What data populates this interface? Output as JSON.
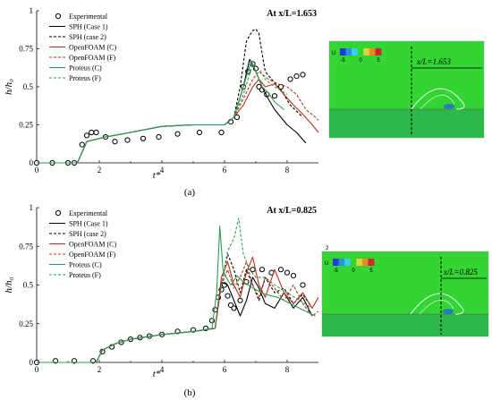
{
  "chart_data": [
    {
      "type": "line",
      "panel_caption": "(a)",
      "annotation": "At x/L=1.653",
      "xlabel": "t*",
      "ylabel": "h/h₀",
      "xlim": [
        0,
        9
      ],
      "ylim": [
        0,
        1
      ],
      "xticks": [
        0,
        2,
        4,
        6,
        8
      ],
      "yticks": [
        0,
        0.25,
        0.5,
        0.75,
        1
      ],
      "xtick_labels": [
        "0",
        "2",
        "4",
        "6",
        "8"
      ],
      "ytick_labels": [
        "0",
        "0.25",
        "0.5",
        "0.75",
        "1"
      ],
      "legend_position": "top-left",
      "series": [
        {
          "name": "Experimental",
          "style": "circle-marker",
          "color": "#000000",
          "x": [
            0,
            0.5,
            1.0,
            1.2,
            1.45,
            1.6,
            1.75,
            1.9,
            2.2,
            2.5,
            2.9,
            3.4,
            3.9,
            4.5,
            5.2,
            5.9,
            6.2,
            6.4,
            6.6,
            6.75,
            6.9,
            7.0,
            7.1,
            7.2,
            7.35,
            7.6,
            7.8,
            8.1,
            8.3,
            8.5
          ],
          "y": [
            0,
            0,
            0,
            0,
            0.12,
            0.18,
            0.2,
            0.2,
            0.17,
            0.14,
            0.15,
            0.16,
            0.17,
            0.19,
            0.2,
            0.2,
            0.27,
            0.3,
            0.5,
            0.6,
            0.65,
            0.62,
            0.5,
            0.48,
            0.45,
            0.44,
            0.5,
            0.55,
            0.57,
            0.58
          ]
        },
        {
          "name": "SPH (Case 1)",
          "style": "solid",
          "color": "#000000",
          "x": [
            0,
            1.3,
            1.6,
            2.2,
            3.0,
            4.0,
            5.0,
            6.0,
            6.3,
            6.6,
            6.8,
            7.0,
            7.2,
            7.4,
            7.6,
            7.8,
            8.0,
            8.3,
            8.6
          ],
          "y": [
            0,
            0,
            0.14,
            0.17,
            0.2,
            0.24,
            0.25,
            0.25,
            0.3,
            0.5,
            0.68,
            0.6,
            0.5,
            0.42,
            0.35,
            0.3,
            0.25,
            0.2,
            0.13
          ]
        },
        {
          "name": "SPH (case 2)",
          "style": "dashed",
          "color": "#000000",
          "x": [
            0,
            1.3,
            1.6,
            2.2,
            3.0,
            4.0,
            5.0,
            6.0,
            6.3,
            6.5,
            6.7,
            6.9,
            7.0,
            7.1,
            7.2,
            7.3,
            7.5,
            7.8,
            8.1,
            8.5
          ],
          "y": [
            0,
            0,
            0.14,
            0.17,
            0.2,
            0.24,
            0.25,
            0.25,
            0.3,
            0.5,
            0.8,
            0.87,
            0.88,
            0.85,
            0.72,
            0.6,
            0.55,
            0.48,
            0.38,
            0.3
          ]
        },
        {
          "name": "OpenFOAM (C)",
          "style": "solid",
          "color": "#b5341b",
          "x": [
            0,
            1.3,
            1.6,
            2.2,
            3.0,
            4.0,
            5.0,
            6.0,
            6.3,
            6.6,
            6.9,
            7.1,
            7.3,
            7.6,
            7.9,
            8.2,
            8.5,
            8.8,
            9.0
          ],
          "y": [
            0,
            0,
            0.14,
            0.17,
            0.2,
            0.24,
            0.25,
            0.25,
            0.3,
            0.38,
            0.5,
            0.55,
            0.5,
            0.52,
            0.45,
            0.38,
            0.32,
            0.25,
            0.2
          ]
        },
        {
          "name": "OpenFOAM (F)",
          "style": "dashed",
          "color": "#b5341b",
          "x": [
            0,
            1.3,
            1.6,
            2.2,
            3.0,
            4.0,
            5.0,
            6.0,
            6.3,
            6.6,
            6.9,
            7.1,
            7.4,
            7.7,
            8.0,
            8.3,
            8.6,
            8.9,
            9.0
          ],
          "y": [
            0,
            0,
            0.14,
            0.17,
            0.2,
            0.24,
            0.25,
            0.25,
            0.3,
            0.42,
            0.55,
            0.6,
            0.55,
            0.52,
            0.5,
            0.45,
            0.35,
            0.3,
            0.28
          ]
        },
        {
          "name": "Proteus (C)",
          "style": "solid",
          "color": "#2f9a55",
          "x": [
            0,
            1.3,
            1.6,
            2.2,
            3.0,
            4.0,
            5.0,
            6.0,
            6.3,
            6.6,
            6.85,
            7.0,
            7.2,
            7.4,
            7.6,
            7.9
          ],
          "y": [
            0,
            0,
            0.14,
            0.17,
            0.2,
            0.24,
            0.25,
            0.25,
            0.3,
            0.5,
            0.67,
            0.6,
            0.5,
            0.46,
            0.4,
            0.35
          ]
        },
        {
          "name": "Proteus (F)",
          "style": "dashed",
          "color": "#2f9a55",
          "x": [
            0,
            1.3,
            1.6,
            2.2,
            3.0,
            4.0,
            5.0,
            6.0,
            6.3,
            6.6,
            6.9,
            7.1,
            7.3,
            7.6,
            8.0
          ],
          "y": [
            0,
            0,
            0.14,
            0.17,
            0.2,
            0.24,
            0.25,
            0.25,
            0.3,
            0.45,
            0.65,
            0.62,
            0.55,
            0.5,
            0.45
          ]
        }
      ]
    },
    {
      "type": "line",
      "panel_caption": "(b)",
      "annotation": "At x/L=0.825",
      "xlabel": "t*",
      "ylabel": "h/h₀",
      "xlim": [
        0,
        9
      ],
      "ylim": [
        0,
        1
      ],
      "xticks": [
        0,
        2,
        4,
        6,
        8
      ],
      "yticks": [
        0,
        0.25,
        0.5,
        0.75,
        1
      ],
      "xtick_labels": [
        "0",
        "2",
        "4",
        "6",
        "8"
      ],
      "ytick_labels": [
        "0",
        "0.25",
        "0.5",
        "0.75",
        "1"
      ],
      "legend_position": "top-left",
      "series": [
        {
          "name": "Experimental",
          "style": "circle-marker",
          "color": "#000000",
          "x": [
            0,
            0.6,
            1.2,
            1.8,
            2.1,
            2.4,
            2.7,
            3.0,
            3.3,
            3.6,
            4.0,
            4.5,
            5.0,
            5.4,
            5.6,
            5.7,
            5.8,
            5.9,
            6.0,
            6.1,
            6.2,
            6.3,
            6.5,
            6.7,
            6.9,
            7.2,
            7.5,
            7.8,
            8.0,
            8.2,
            8.5
          ],
          "y": [
            0,
            0.01,
            0.01,
            0.01,
            0.07,
            0.1,
            0.13,
            0.15,
            0.16,
            0.17,
            0.18,
            0.2,
            0.21,
            0.22,
            0.27,
            0.34,
            0.42,
            0.47,
            0.5,
            0.43,
            0.37,
            0.35,
            0.4,
            0.52,
            0.6,
            0.6,
            0.58,
            0.6,
            0.58,
            0.56,
            0.5
          ]
        },
        {
          "name": "SPH (Case 1)",
          "style": "solid",
          "color": "#000000",
          "x": [
            0,
            1.9,
            2.1,
            2.5,
            3.0,
            4.0,
            5.0,
            5.7,
            5.9,
            6.1,
            6.3,
            6.5,
            6.7,
            6.9,
            7.1,
            7.3,
            7.6,
            7.9,
            8.2,
            8.5,
            8.8
          ],
          "y": [
            0,
            0,
            0.08,
            0.12,
            0.15,
            0.18,
            0.2,
            0.22,
            0.52,
            0.5,
            0.4,
            0.3,
            0.4,
            0.55,
            0.48,
            0.38,
            0.35,
            0.45,
            0.35,
            0.42,
            0.3
          ]
        },
        {
          "name": "SPH (case 2)",
          "style": "dashed",
          "color": "#000000",
          "x": [
            0,
            1.9,
            2.1,
            2.5,
            3.0,
            4.0,
            5.0,
            5.7,
            5.9,
            6.1,
            6.3,
            6.5,
            6.7,
            6.9,
            7.1,
            7.3,
            7.6,
            7.9,
            8.2,
            8.5,
            8.8
          ],
          "y": [
            0,
            0,
            0.08,
            0.12,
            0.15,
            0.18,
            0.2,
            0.22,
            0.5,
            0.7,
            0.6,
            0.45,
            0.6,
            0.5,
            0.4,
            0.55,
            0.45,
            0.48,
            0.38,
            0.44,
            0.35
          ]
        },
        {
          "name": "OpenFOAM (C)",
          "style": "solid",
          "color": "#b5341b",
          "x": [
            0,
            1.9,
            2.1,
            2.5,
            3.0,
            4.0,
            5.0,
            5.7,
            5.9,
            6.1,
            6.3,
            6.5,
            6.7,
            6.9,
            7.1,
            7.3,
            7.6,
            7.9,
            8.2,
            8.5,
            8.8,
            9.0
          ],
          "y": [
            0,
            0,
            0.08,
            0.12,
            0.15,
            0.18,
            0.2,
            0.22,
            0.55,
            0.65,
            0.5,
            0.42,
            0.58,
            0.68,
            0.5,
            0.42,
            0.6,
            0.45,
            0.38,
            0.45,
            0.35,
            0.42
          ]
        },
        {
          "name": "OpenFOAM (F)",
          "style": "dashed",
          "color": "#b5341b",
          "x": [
            0,
            1.9,
            2.1,
            2.5,
            3.0,
            4.0,
            5.0,
            5.7,
            5.9,
            6.1,
            6.3,
            6.5,
            6.7,
            6.9,
            7.1,
            7.3,
            7.6,
            7.9,
            8.2,
            8.5,
            8.8,
            9.0
          ],
          "y": [
            0,
            0,
            0.08,
            0.12,
            0.15,
            0.18,
            0.2,
            0.22,
            0.5,
            0.6,
            0.48,
            0.55,
            0.65,
            0.5,
            0.42,
            0.55,
            0.48,
            0.4,
            0.5,
            0.38,
            0.3,
            0.33
          ]
        },
        {
          "name": "Proteus (C)",
          "style": "solid",
          "color": "#2f9a55",
          "x": [
            0,
            1.9,
            2.1,
            2.5,
            3.0,
            4.0,
            5.0,
            5.6,
            5.75,
            5.85,
            5.95,
            6.05,
            6.2,
            6.4,
            6.6,
            6.9,
            7.3,
            7.7,
            8.1,
            8.5,
            8.9
          ],
          "y": [
            0,
            0,
            0.08,
            0.12,
            0.15,
            0.18,
            0.2,
            0.22,
            0.45,
            0.88,
            0.6,
            0.55,
            0.5,
            0.56,
            0.52,
            0.48,
            0.44,
            0.42,
            0.38,
            0.34,
            0.3
          ]
        },
        {
          "name": "Proteus (F)",
          "style": "dashed",
          "color": "#2f9a55",
          "x": [
            0,
            1.9,
            2.1,
            2.5,
            3.0,
            4.0,
            5.0,
            5.7,
            5.9,
            6.1,
            6.3,
            6.45,
            6.6,
            6.8,
            7.0,
            7.3,
            7.6,
            8.0,
            8.4,
            8.8
          ],
          "y": [
            0,
            0,
            0.08,
            0.12,
            0.15,
            0.18,
            0.2,
            0.22,
            0.5,
            0.72,
            0.8,
            0.93,
            0.7,
            0.6,
            0.55,
            0.55,
            0.5,
            0.45,
            0.4,
            0.35
          ]
        }
      ]
    }
  ],
  "insets": [
    {
      "colorbar_label": "U",
      "colorbar_ticks": [
        "-5",
        "0",
        "5"
      ],
      "annotation": "x/L=1.653",
      "colors": {
        "background": "#33d433",
        "deep": "#2a7ac0"
      }
    },
    {
      "colorbar_label": "U",
      "colorbar_ticks": [
        "-5",
        "0",
        "5"
      ],
      "annotation": "x/L=0.825",
      "extra_label": "2",
      "colors": {
        "background": "#33d433",
        "deep": "#2a7ac0"
      }
    }
  ]
}
